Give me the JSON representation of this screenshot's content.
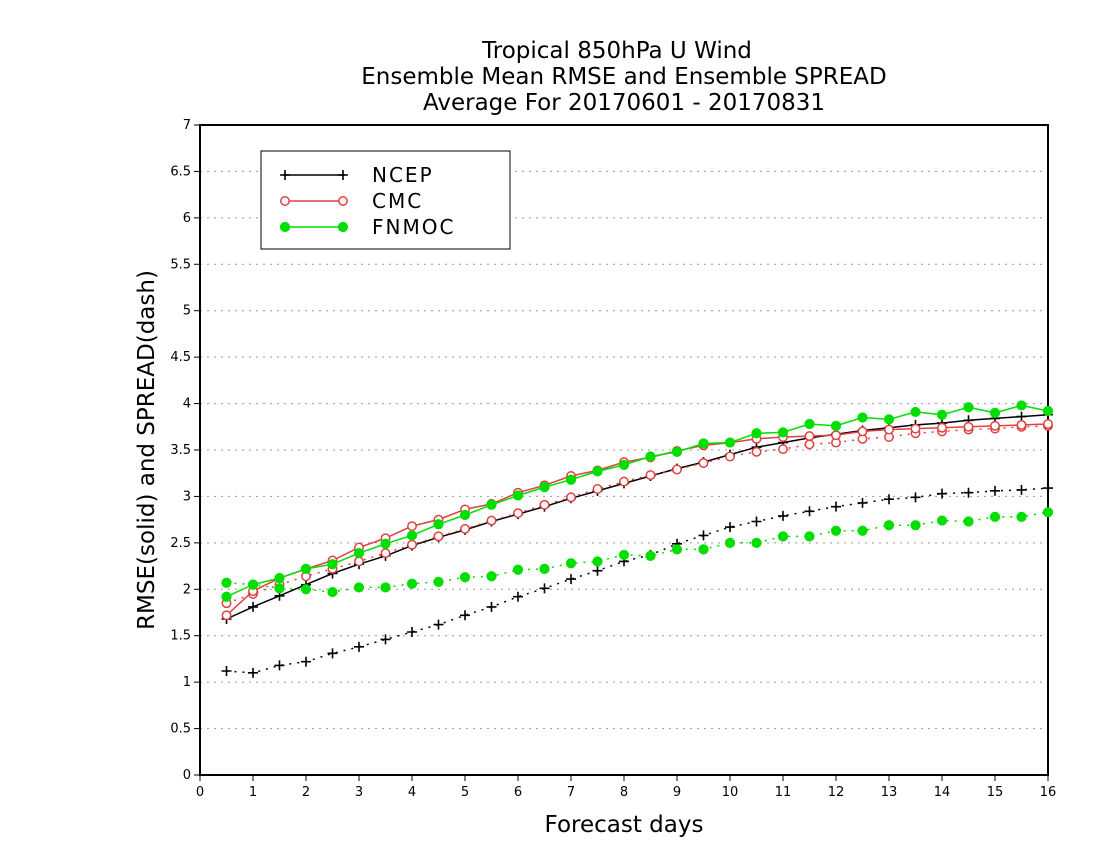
{
  "chart_data": {
    "type": "line",
    "title": [
      "Tropical 850hPa U Wind",
      "Ensemble Mean RMSE and Ensemble SPREAD",
      "Average For 20170601 - 20170831"
    ],
    "xlabel": "Forecast days",
    "ylabel": "RMSE(solid) and SPREAD(dash)",
    "xlim": [
      0,
      16
    ],
    "ylim": [
      0,
      7
    ],
    "xticks": [
      "0",
      "1",
      "2",
      "3",
      "4",
      "5",
      "6",
      "7",
      "8",
      "9",
      "10",
      "11",
      "12",
      "13",
      "14",
      "15",
      "16"
    ],
    "yticks": [
      "0",
      "0.5",
      "1",
      "1.5",
      "2",
      "2.5",
      "3",
      "3.5",
      "4",
      "4.5",
      "5",
      "5.5",
      "6",
      "6.5",
      "7"
    ],
    "grid": "horizontal dotted",
    "legend_position": "top-left",
    "x": [
      0.5,
      1,
      1.5,
      2,
      2.5,
      3,
      3.5,
      4,
      4.5,
      5,
      5.5,
      6,
      6.5,
      7,
      7.5,
      8,
      8.5,
      9,
      9.5,
      10,
      10.5,
      11,
      11.5,
      12,
      12.5,
      13,
      13.5,
      14,
      14.5,
      15,
      15.5,
      16
    ],
    "series": [
      {
        "name": "NCEP",
        "color": "#000000",
        "marker": "plus",
        "rmse": [
          1.68,
          1.81,
          1.93,
          2.05,
          2.17,
          2.27,
          2.36,
          2.47,
          2.56,
          2.64,
          2.73,
          2.81,
          2.89,
          2.98,
          3.06,
          3.14,
          3.22,
          3.3,
          3.37,
          3.45,
          3.53,
          3.58,
          3.63,
          3.67,
          3.71,
          3.74,
          3.77,
          3.79,
          3.82,
          3.84,
          3.86,
          3.88
        ],
        "spread": [
          1.12,
          1.1,
          1.18,
          1.22,
          1.31,
          1.38,
          1.46,
          1.54,
          1.62,
          1.72,
          1.81,
          1.92,
          2.01,
          2.11,
          2.2,
          2.3,
          2.37,
          2.49,
          2.58,
          2.67,
          2.73,
          2.79,
          2.84,
          2.89,
          2.93,
          2.97,
          2.99,
          3.03,
          3.04,
          3.06,
          3.07,
          3.09
        ]
      },
      {
        "name": "CMC",
        "color": "#e04040",
        "marker": "open-circle",
        "rmse": [
          1.72,
          1.98,
          2.12,
          2.22,
          2.31,
          2.45,
          2.55,
          2.68,
          2.75,
          2.86,
          2.92,
          3.04,
          3.12,
          3.22,
          3.28,
          3.37,
          3.42,
          3.49,
          3.55,
          3.58,
          3.62,
          3.64,
          3.65,
          3.66,
          3.7,
          3.72,
          3.73,
          3.74,
          3.75,
          3.76,
          3.77,
          3.78
        ],
        "spread": [
          1.85,
          1.95,
          2.05,
          2.14,
          2.22,
          2.3,
          2.39,
          2.48,
          2.57,
          2.65,
          2.74,
          2.82,
          2.91,
          2.99,
          3.08,
          3.16,
          3.23,
          3.29,
          3.36,
          3.43,
          3.48,
          3.51,
          3.56,
          3.58,
          3.62,
          3.64,
          3.68,
          3.7,
          3.72,
          3.73,
          3.75,
          3.76
        ]
      },
      {
        "name": "FNMOC",
        "color": "#00dd00",
        "marker": "filled-circle",
        "rmse": [
          1.92,
          2.05,
          2.12,
          2.22,
          2.27,
          2.39,
          2.49,
          2.58,
          2.7,
          2.8,
          2.91,
          3.01,
          3.1,
          3.18,
          3.27,
          3.34,
          3.43,
          3.48,
          3.57,
          3.58,
          3.68,
          3.69,
          3.78,
          3.76,
          3.85,
          3.83,
          3.91,
          3.88,
          3.96,
          3.9,
          3.98,
          3.92
        ],
        "spread": [
          2.07,
          2.05,
          2.01,
          2.0,
          1.97,
          2.02,
          2.02,
          2.06,
          2.08,
          2.13,
          2.14,
          2.21,
          2.22,
          2.28,
          2.3,
          2.37,
          2.36,
          2.43,
          2.43,
          2.5,
          2.5,
          2.57,
          2.57,
          2.63,
          2.63,
          2.69,
          2.69,
          2.74,
          2.73,
          2.78,
          2.78,
          2.83
        ]
      }
    ]
  }
}
